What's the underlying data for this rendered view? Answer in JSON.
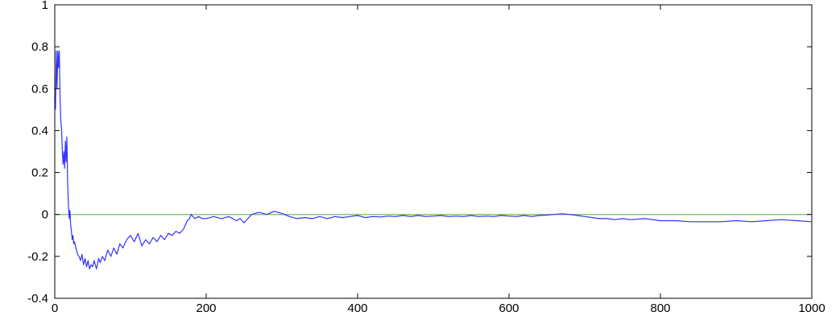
{
  "chart_data": {
    "type": "line",
    "title": "",
    "xlabel": "",
    "ylabel": "",
    "xlim": [
      0,
      1000
    ],
    "ylim": [
      -0.4,
      1
    ],
    "grid": false,
    "x_ticks": [
      0,
      200,
      400,
      600,
      800,
      1000
    ],
    "x_tick_labels": [
      "0",
      "200",
      "400",
      "600",
      "800",
      "1000"
    ],
    "y_ticks": [
      -0.4,
      -0.2,
      0,
      0.2,
      0.4,
      0.6,
      0.8,
      1
    ],
    "y_tick_labels": [
      "-0.4",
      "-0.2",
      "0",
      "0.2",
      "0.4",
      "0.6",
      "0.8",
      "1"
    ],
    "reference_line": {
      "y": 0,
      "color": "#7fc97f"
    },
    "series": [
      {
        "color": "#3333ff",
        "x": [
          1,
          2,
          3,
          4,
          5,
          6,
          7,
          8,
          9,
          10,
          11,
          12,
          13,
          14,
          15,
          16,
          17,
          18,
          19,
          20,
          21,
          22,
          23,
          24,
          25,
          26,
          28,
          30,
          32,
          34,
          36,
          38,
          40,
          42,
          44,
          46,
          48,
          50,
          52,
          55,
          58,
          60,
          63,
          66,
          70,
          74,
          78,
          82,
          86,
          90,
          95,
          100,
          105,
          110,
          115,
          120,
          125,
          130,
          135,
          140,
          145,
          150,
          155,
          160,
          165,
          170,
          175,
          178,
          180,
          185,
          190,
          195,
          200,
          210,
          220,
          230,
          240,
          245,
          250,
          255,
          260,
          270,
          280,
          290,
          300,
          310,
          320,
          330,
          340,
          350,
          360,
          370,
          380,
          390,
          400,
          410,
          420,
          430,
          440,
          450,
          460,
          470,
          480,
          490,
          500,
          510,
          520,
          530,
          540,
          550,
          560,
          570,
          580,
          590,
          600,
          610,
          620,
          630,
          640,
          650,
          660,
          670,
          680,
          690,
          700,
          710,
          720,
          730,
          740,
          750,
          760,
          780,
          800,
          820,
          840,
          860,
          880,
          900,
          920,
          940,
          960,
          980,
          1000
        ],
        "y": [
          0.5,
          0.78,
          0.6,
          0.78,
          0.7,
          0.78,
          0.55,
          0.45,
          0.4,
          0.3,
          0.24,
          0.3,
          0.22,
          0.35,
          0.25,
          0.37,
          0.15,
          0.05,
          -0.02,
          0.02,
          -0.05,
          -0.08,
          -0.12,
          -0.1,
          -0.14,
          -0.13,
          -0.16,
          -0.19,
          -0.2,
          -0.22,
          -0.19,
          -0.24,
          -0.21,
          -0.25,
          -0.22,
          -0.26,
          -0.24,
          -0.25,
          -0.22,
          -0.26,
          -0.21,
          -0.23,
          -0.2,
          -0.22,
          -0.17,
          -0.2,
          -0.16,
          -0.19,
          -0.14,
          -0.16,
          -0.12,
          -0.1,
          -0.13,
          -0.09,
          -0.15,
          -0.12,
          -0.14,
          -0.11,
          -0.13,
          -0.1,
          -0.12,
          -0.09,
          -0.1,
          -0.08,
          -0.09,
          -0.07,
          -0.03,
          -0.02,
          0.0,
          -0.02,
          -0.01,
          -0.02,
          -0.02,
          -0.01,
          -0.02,
          -0.01,
          -0.03,
          -0.02,
          -0.04,
          -0.02,
          0.0,
          0.01,
          0.0,
          0.015,
          0.005,
          -0.01,
          -0.02,
          -0.015,
          -0.02,
          -0.01,
          -0.02,
          -0.01,
          -0.015,
          -0.01,
          -0.005,
          -0.015,
          -0.01,
          -0.012,
          -0.008,
          -0.01,
          -0.005,
          -0.01,
          -0.005,
          -0.01,
          -0.008,
          -0.005,
          -0.01,
          -0.008,
          -0.01,
          -0.005,
          -0.01,
          -0.008,
          -0.01,
          -0.005,
          -0.008,
          -0.01,
          -0.005,
          -0.01,
          -0.005,
          -0.003,
          0.0,
          0.003,
          0.0,
          -0.005,
          -0.01,
          -0.015,
          -0.02,
          -0.02,
          -0.025,
          -0.02,
          -0.025,
          -0.02,
          -0.03,
          -0.03,
          -0.035,
          -0.035,
          -0.035,
          -0.03,
          -0.035,
          -0.03,
          -0.025,
          -0.03,
          -0.035
        ]
      }
    ]
  }
}
